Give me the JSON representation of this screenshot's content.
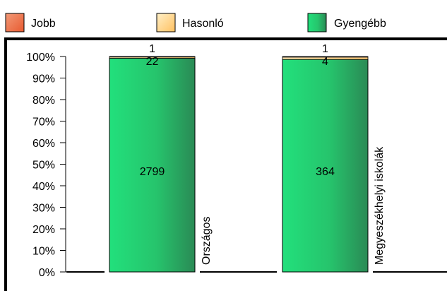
{
  "colors": {
    "jobb": "#f07850",
    "hasonlo": "#ffd080",
    "gyengebb": "#22d877",
    "gyengebb_dark": "#2a9a5a",
    "frame": "#000000"
  },
  "chart_data": {
    "type": "bar",
    "stacked": true,
    "normalized": true,
    "categories": [
      "Országos",
      "Megyeszékhelyi iskolák"
    ],
    "series": [
      {
        "name": "Jobb",
        "values": [
          1,
          1
        ]
      },
      {
        "name": "Hasonló",
        "values": [
          22,
          4
        ]
      },
      {
        "name": "Gyengébb",
        "values": [
          2799,
          364
        ]
      }
    ],
    "y_ticks": [
      "0%",
      "10%",
      "20%",
      "30%",
      "40%",
      "50%",
      "60%",
      "70%",
      "80%",
      "90%",
      "100%"
    ],
    "ylim": [
      0,
      100
    ],
    "legend_position": "top",
    "grid": false
  }
}
